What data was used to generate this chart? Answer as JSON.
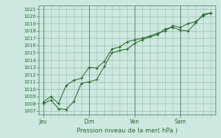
{
  "bg_color": "#cce8e0",
  "grid_color": "#99bbaa",
  "line_color": "#2d6a2d",
  "marker_color": "#2d6a2d",
  "ylabel_values": [
    1007,
    1008,
    1009,
    1010,
    1011,
    1012,
    1013,
    1014,
    1015,
    1016,
    1017,
    1018,
    1019,
    1020,
    1021
  ],
  "ylim": [
    1006.5,
    1021.5
  ],
  "xlabel": "Pression niveau de la mer( hPa )",
  "day_labels": [
    "Jeu",
    "Dim",
    "Ven",
    "Sam"
  ],
  "day_positions": [
    0.0,
    3.0,
    6.0,
    9.0
  ],
  "xlim": [
    -0.3,
    11.3
  ],
  "line1_x": [
    0.0,
    0.5,
    1.0,
    1.5,
    2.0,
    2.5,
    3.0,
    3.5,
    4.0,
    4.5,
    5.0,
    5.5,
    6.0,
    6.5,
    7.0,
    7.5,
    8.0,
    8.5,
    9.0,
    9.5,
    10.0,
    10.5,
    11.0
  ],
  "line1_y": [
    1008.0,
    1008.5,
    1007.3,
    1007.2,
    1008.3,
    1010.8,
    1011.0,
    1011.3,
    1013.1,
    1015.0,
    1015.3,
    1015.5,
    1016.3,
    1016.8,
    1017.2,
    1017.5,
    1018.3,
    1018.5,
    1018.1,
    1018.0,
    1019.1,
    1020.3,
    1020.5
  ],
  "line2_x": [
    0.0,
    0.5,
    1.0,
    1.5,
    2.0,
    2.5,
    3.0,
    3.5,
    4.0,
    4.5,
    5.0,
    5.5,
    6.0,
    6.5,
    7.0,
    7.5,
    8.0,
    8.5,
    9.0,
    9.5,
    10.0,
    10.5,
    11.0
  ],
  "line2_y": [
    1008.2,
    1009.0,
    1008.0,
    1010.5,
    1011.2,
    1011.5,
    1013.0,
    1012.9,
    1013.8,
    1015.5,
    1015.8,
    1016.5,
    1016.8,
    1017.0,
    1017.3,
    1017.7,
    1018.0,
    1018.7,
    1018.5,
    1019.0,
    1019.3,
    1020.1,
    1020.5
  ],
  "tick_label_fontsize": 5.0,
  "xlabel_fontsize": 6.5,
  "day_label_fontsize": 5.5
}
